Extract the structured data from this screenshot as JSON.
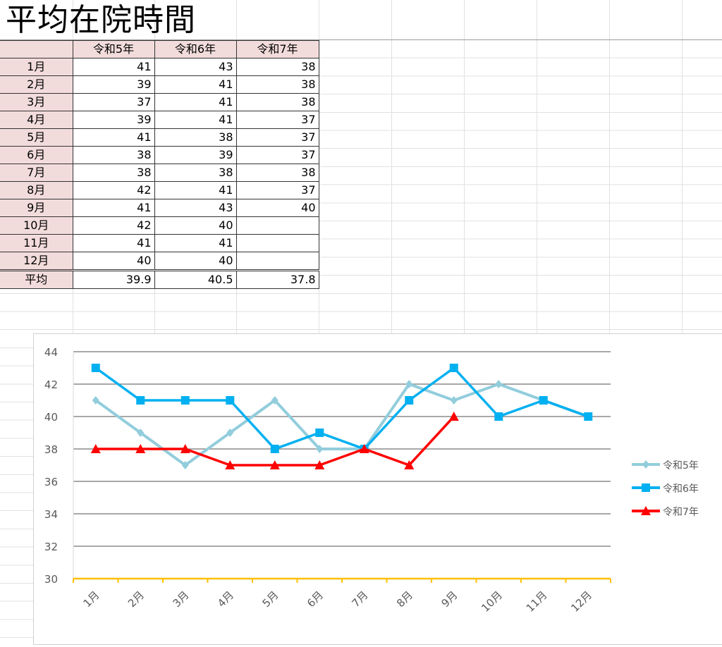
{
  "title": "平均在院時間",
  "table": {
    "headers": [
      "",
      "令和5年",
      "令和6年",
      "令和7年"
    ],
    "rows": [
      {
        "label": "1月",
        "values": [
          "41",
          "43",
          "38"
        ]
      },
      {
        "label": "2月",
        "values": [
          "39",
          "41",
          "38"
        ]
      },
      {
        "label": "3月",
        "values": [
          "37",
          "41",
          "38"
        ]
      },
      {
        "label": "4月",
        "values": [
          "39",
          "41",
          "37"
        ]
      },
      {
        "label": "5月",
        "values": [
          "41",
          "38",
          "37"
        ]
      },
      {
        "label": "6月",
        "values": [
          "38",
          "39",
          "37"
        ]
      },
      {
        "label": "7月",
        "values": [
          "38",
          "38",
          "38"
        ]
      },
      {
        "label": "8月",
        "values": [
          "42",
          "41",
          "37"
        ]
      },
      {
        "label": "9月",
        "values": [
          "41",
          "43",
          "40"
        ]
      },
      {
        "label": "10月",
        "values": [
          "42",
          "40",
          ""
        ]
      },
      {
        "label": "11月",
        "values": [
          "41",
          "41",
          ""
        ]
      },
      {
        "label": "12月",
        "values": [
          "40",
          "40",
          ""
        ]
      }
    ],
    "average": {
      "label": "平均",
      "values": [
        "39.9",
        "40.5",
        "37.8"
      ]
    }
  },
  "chart_data": {
    "type": "line",
    "categories": [
      "1月",
      "2月",
      "3月",
      "4月",
      "5月",
      "6月",
      "7月",
      "8月",
      "9月",
      "10月",
      "11月",
      "12月"
    ],
    "series": [
      {
        "name": "令和5年",
        "color": "#92cddc",
        "marker": "diamond",
        "values": [
          41,
          39,
          37,
          39,
          41,
          38,
          38,
          42,
          41,
          42,
          41,
          40
        ]
      },
      {
        "name": "令和6年",
        "color": "#00b0f0",
        "marker": "square",
        "values": [
          43,
          41,
          41,
          41,
          38,
          39,
          38,
          41,
          43,
          40,
          41,
          40
        ]
      },
      {
        "name": "令和7年",
        "color": "#ff0000",
        "marker": "triangle",
        "values": [
          38,
          38,
          38,
          37,
          37,
          37,
          38,
          37,
          40,
          null,
          null,
          null
        ]
      }
    ],
    "ylim": [
      30,
      44
    ],
    "yticks": [
      "30",
      "32",
      "34",
      "36",
      "38",
      "40",
      "42",
      "44"
    ],
    "grid": true,
    "legend": "right",
    "xaxis_color": "#ffc000"
  }
}
